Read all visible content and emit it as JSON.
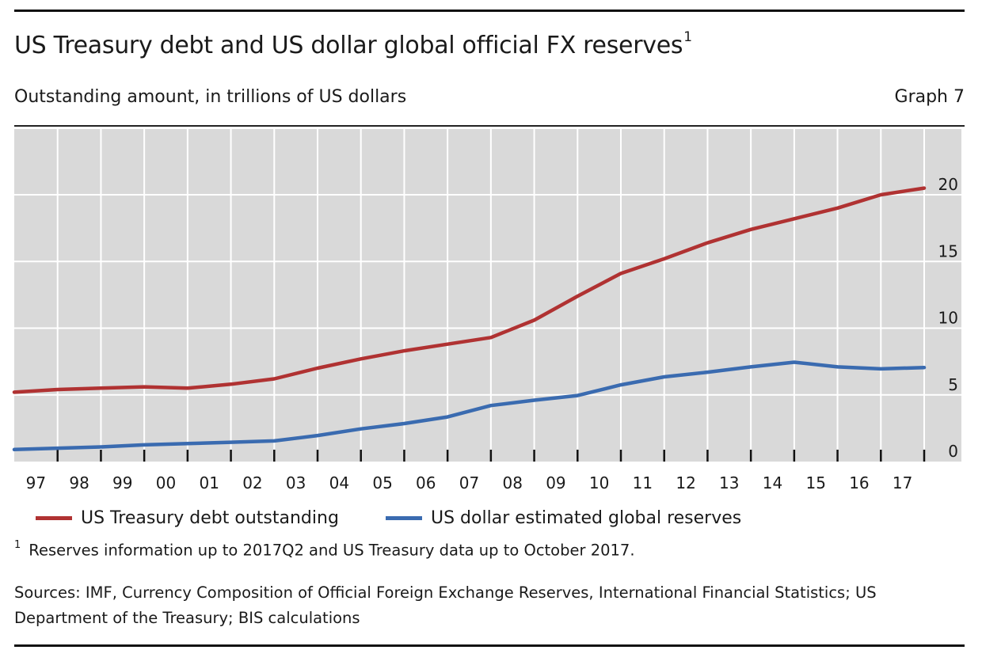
{
  "header": {
    "title": "US Treasury debt and US dollar global official FX reserves",
    "title_footnote_marker": "1",
    "subtitle": "Outstanding amount, in trillions of US dollars",
    "graph_number": "Graph 7"
  },
  "legend": {
    "items": [
      {
        "label": "US Treasury debt outstanding",
        "color": "#B03232"
      },
      {
        "label": "US dollar estimated global reserves",
        "color": "#3A6BB0"
      }
    ]
  },
  "footnote": {
    "marker": "1",
    "text": "Reserves information up to 2017Q2 and US Treasury data up to October 2017."
  },
  "sources": {
    "text": "Sources: IMF, Currency Composition of Official Foreign Exchange Reserves, International Financial Statistics; US Department of the Treasury; BIS calculations"
  },
  "chart_data": {
    "type": "line",
    "title": "US Treasury debt and US dollar global official FX reserves",
    "subtitle": "Outstanding amount, in trillions of US dollars",
    "xlabel": "",
    "ylabel": "",
    "x_tick_labels": [
      "97",
      "98",
      "99",
      "00",
      "01",
      "02",
      "03",
      "04",
      "05",
      "06",
      "07",
      "08",
      "09",
      "10",
      "11",
      "12",
      "13",
      "14",
      "15",
      "16",
      "17"
    ],
    "x": [
      1996.9,
      1997.9,
      1998.9,
      1999.9,
      2000.9,
      2001.9,
      2002.9,
      2003.9,
      2004.9,
      2005.9,
      2006.9,
      2007.9,
      2008.9,
      2009.9,
      2010.9,
      2011.9,
      2012.9,
      2013.9,
      2014.9,
      2015.9,
      2016.9,
      2017.8
    ],
    "xlim": [
      1997,
      2018
    ],
    "y_ticks": [
      0,
      5,
      10,
      15,
      20
    ],
    "ylim": [
      0,
      23.5
    ],
    "y_axis_side": "right",
    "grid": true,
    "legend_position": "bottom",
    "series": [
      {
        "name": "US Treasury debt outstanding",
        "color": "#B03232",
        "values": [
          5.2,
          5.4,
          5.5,
          5.6,
          5.5,
          5.8,
          6.2,
          7.0,
          7.7,
          8.3,
          8.8,
          9.3,
          10.6,
          12.4,
          14.1,
          15.2,
          16.4,
          17.4,
          18.2,
          19.0,
          20.0,
          20.5
        ]
      },
      {
        "name": "US dollar estimated global reserves",
        "color": "#3A6BB0",
        "values": [
          0.9,
          1.0,
          1.1,
          1.25,
          1.35,
          1.45,
          1.55,
          1.95,
          2.45,
          2.85,
          3.35,
          4.2,
          4.6,
          4.95,
          5.75,
          6.35,
          6.7,
          7.1,
          7.45,
          7.1,
          6.95,
          7.05
        ]
      }
    ]
  }
}
